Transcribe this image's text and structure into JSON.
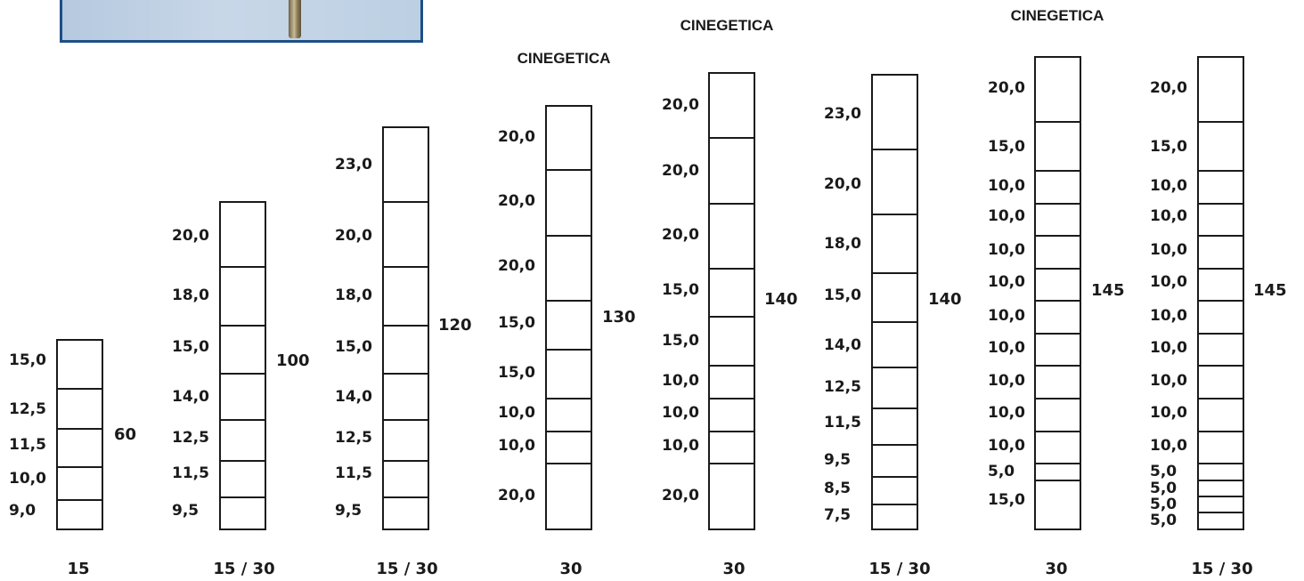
{
  "rods": [
    {
      "header": "",
      "sections": [
        "15,0",
        "12,5",
        "11,5",
        "10,0",
        "9,0"
      ],
      "total": "60",
      "footer": "15"
    },
    {
      "header": "",
      "sections": [
        "20,0",
        "18,0",
        "15,0",
        "14,0",
        "12,5",
        "11,5",
        "9,5"
      ],
      "total": "100",
      "footer": "15 / 30"
    },
    {
      "header": "",
      "sections": [
        "23,0",
        "20,0",
        "18,0",
        "15,0",
        "14,0",
        "12,5",
        "11,5",
        "9,5"
      ],
      "total": "120",
      "footer": "15 / 30"
    },
    {
      "header": "CINEGETICA",
      "sections": [
        "20,0",
        "20,0",
        "20,0",
        "15,0",
        "15,0",
        "10,0",
        "10,0",
        "20,0"
      ],
      "total": "130",
      "footer": "30"
    },
    {
      "header": "CINEGETICA",
      "sections": [
        "20,0",
        "20,0",
        "20,0",
        "15,0",
        "15,0",
        "10,0",
        "10,0",
        "10,0",
        "20,0"
      ],
      "total": "140",
      "footer": "30"
    },
    {
      "header": "",
      "sections": [
        "23,0",
        "20,0",
        "18,0",
        "15,0",
        "14,0",
        "12,5",
        "11,5",
        "9,5",
        "8,5",
        "7,5"
      ],
      "total": "140",
      "footer": "15 / 30"
    },
    {
      "header": "CINEGETICA",
      "sections": [
        "20,0",
        "15,0",
        "10,0",
        "10,0",
        "10,0",
        "10,0",
        "10,0",
        "10,0",
        "10,0",
        "10,0",
        "10,0",
        "5,0",
        "15,0"
      ],
      "total": "145",
      "footer": "30"
    },
    {
      "header": "",
      "sections": [
        "20,0",
        "15,0",
        "10,0",
        "10,0",
        "10,0",
        "10,0",
        "10,0",
        "10,0",
        "10,0",
        "10,0",
        "10,0",
        "5,0",
        "5,0",
        "5,0",
        "5,0"
      ],
      "total": "145",
      "footer": "15 / 30"
    }
  ]
}
